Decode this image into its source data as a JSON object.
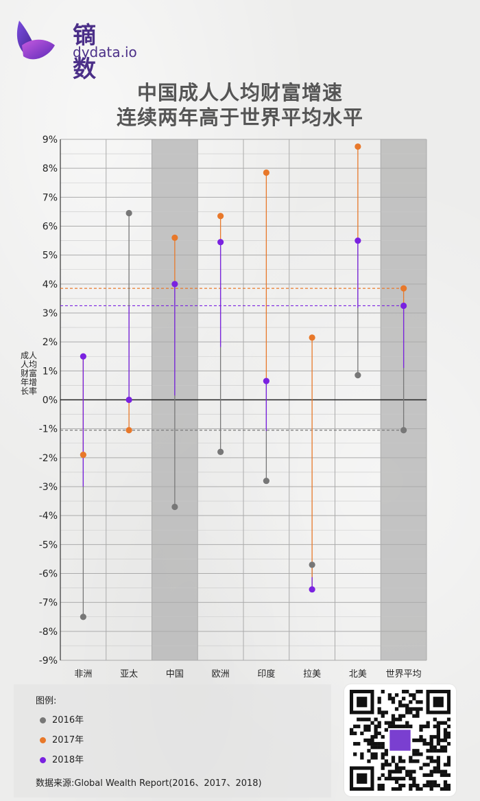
{
  "brand": {
    "name_cn": "镝 数",
    "name_en": "dydata.io"
  },
  "colors": {
    "y2016": "#777777",
    "y2017": "#e8782a",
    "y2018": "#7a22e0",
    "highlight": "#b3b3b3",
    "grid": "#aaaaaa",
    "brand": "#4b2f88"
  },
  "chart_data": {
    "type": "dumbbell",
    "title": "中国成人人均财富增速",
    "subtitle": "连续两年高于世界平均水平",
    "ylabel": "成人人均财富年增长率",
    "ylim": [
      -9,
      9
    ],
    "yticks": [
      "9%",
      "8%",
      "7%",
      "6%",
      "5%",
      "4%",
      "3%",
      "2%",
      "1%",
      "0%",
      "-1%",
      "-2%",
      "-3%",
      "-4%",
      "-5%",
      "-6%",
      "-7%",
      "-8%",
      "-9%"
    ],
    "categories": [
      "非洲",
      "亚太",
      "中国",
      "欧洲",
      "印度",
      "拉美",
      "北美",
      "世界平均"
    ],
    "highlighted": [
      "中国",
      "世界平均"
    ],
    "series": [
      {
        "name": "2016年",
        "values": [
          -7.5,
          6.45,
          -3.7,
          -1.8,
          -2.8,
          -5.7,
          0.85,
          -1.05
        ]
      },
      {
        "name": "2017年",
        "values": [
          -1.9,
          -1.05,
          5.6,
          6.35,
          7.85,
          2.15,
          8.75,
          3.85
        ]
      },
      {
        "name": "2018年",
        "values": [
          1.5,
          0.0,
          4.0,
          5.45,
          0.65,
          -6.55,
          5.5,
          3.25
        ]
      }
    ],
    "reference_lines": [
      {
        "series": "2016年",
        "value": -1.05
      },
      {
        "series": "2017年",
        "value": 3.85
      },
      {
        "series": "2018年",
        "value": 3.25
      }
    ]
  },
  "legend": {
    "title": "图例:",
    "items": [
      {
        "label": "2016年",
        "color": "#777777"
      },
      {
        "label": "2017年",
        "color": "#e8782a"
      },
      {
        "label": "2018年",
        "color": "#7a22e0"
      }
    ]
  },
  "source": "数据来源:Global Wealth Report(2016、2017、2018)"
}
